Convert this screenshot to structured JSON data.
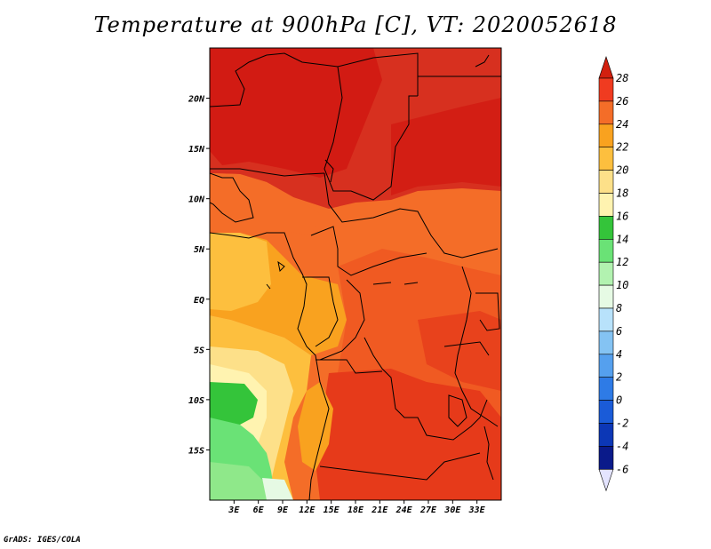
{
  "title": "Temperature at 900hPa [C], VT: 2020052618",
  "footer": "GrADS: IGES/COLA",
  "map": {
    "lon_range": [
      0,
      36
    ],
    "lat_range": [
      -20,
      25
    ],
    "y_ticks": [
      "20N",
      "15N",
      "10N",
      "5N",
      "EQ",
      "5S",
      "10S",
      "15S"
    ],
    "x_ticks": [
      "3E",
      "6E",
      "9E",
      "12E",
      "15E",
      "18E",
      "21E",
      "24E",
      "27E",
      "30E",
      "33E"
    ]
  },
  "colorbar": {
    "labels": [
      "28",
      "26",
      "24",
      "22",
      "20",
      "18",
      "16",
      "14",
      "12",
      "10",
      "8",
      "6",
      "4",
      "2",
      "0",
      "-2",
      "-4",
      "-6"
    ],
    "colors": [
      "#d7301f",
      "#f03b20",
      "#f46d28",
      "#f9a21f",
      "#fdbf3e",
      "#fde089",
      "#fff3b0",
      "#34c43a",
      "#6ae276",
      "#b2f2b0",
      "#e6fae4",
      "#b8e2fb",
      "#84c3f3",
      "#55a0ee",
      "#2e7be6",
      "#1a5bd8",
      "#0c37b6",
      "#0a1a8a",
      "#06064e"
    ],
    "top_arrow_color": "#d2200f",
    "bottom_arrow_color": "#e4e4ff"
  }
}
